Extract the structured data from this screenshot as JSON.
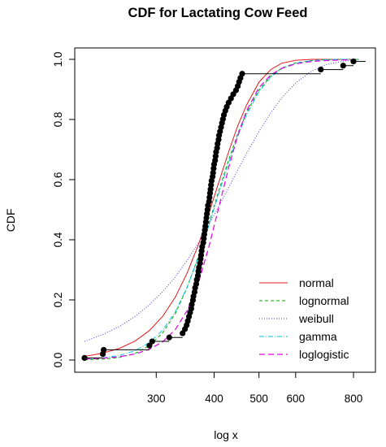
{
  "chart_data": {
    "type": "line",
    "title": "CDF for Lactating Cow Feed",
    "xlabel": "log x",
    "ylabel": "CDF",
    "x_scale": "log",
    "xlim": [
      210,
      850
    ],
    "ylim": [
      0,
      1
    ],
    "x_ticks": [
      300,
      400,
      500,
      600,
      800
    ],
    "y_ticks": [
      0.0,
      0.2,
      0.4,
      0.6,
      0.8,
      1.0
    ],
    "y_tick_labels": [
      "0.0",
      "0.2",
      "0.4",
      "0.6",
      "0.8",
      "1.0"
    ],
    "grid": false,
    "legend_position": "bottom-right",
    "legend_box": false,
    "empirical": {
      "name": "empirical",
      "color": "#000000",
      "points": [
        [
          210,
          0.007
        ],
        [
          230,
          0.02
        ],
        [
          231,
          0.034
        ],
        [
          290,
          0.048
        ],
        [
          294,
          0.062
        ],
        [
          320,
          0.075
        ],
        [
          342,
          0.089
        ],
        [
          346,
          0.103
        ],
        [
          349,
          0.116
        ],
        [
          351,
          0.13
        ],
        [
          353,
          0.144
        ],
        [
          355,
          0.158
        ],
        [
          357,
          0.171
        ],
        [
          358,
          0.185
        ],
        [
          360,
          0.199
        ],
        [
          361,
          0.212
        ],
        [
          363,
          0.226
        ],
        [
          364,
          0.24
        ],
        [
          366,
          0.253
        ],
        [
          367,
          0.267
        ],
        [
          369,
          0.281
        ],
        [
          370,
          0.295
        ],
        [
          371,
          0.308
        ],
        [
          373,
          0.322
        ],
        [
          374,
          0.336
        ],
        [
          375,
          0.349
        ],
        [
          376,
          0.363
        ],
        [
          377,
          0.377
        ],
        [
          379,
          0.39
        ],
        [
          380,
          0.404
        ],
        [
          381,
          0.418
        ],
        [
          382,
          0.432
        ],
        [
          383,
          0.445
        ],
        [
          384,
          0.459
        ],
        [
          385,
          0.473
        ],
        [
          386,
          0.486
        ],
        [
          387,
          0.5
        ],
        [
          388,
          0.514
        ],
        [
          390,
          0.527
        ],
        [
          391,
          0.541
        ],
        [
          392,
          0.555
        ],
        [
          393,
          0.568
        ],
        [
          394,
          0.582
        ],
        [
          395,
          0.596
        ],
        [
          397,
          0.61
        ],
        [
          398,
          0.623
        ],
        [
          399,
          0.637
        ],
        [
          400,
          0.651
        ],
        [
          402,
          0.664
        ],
        [
          403,
          0.678
        ],
        [
          404,
          0.692
        ],
        [
          406,
          0.705
        ],
        [
          407,
          0.719
        ],
        [
          409,
          0.733
        ],
        [
          410,
          0.747
        ],
        [
          412,
          0.76
        ],
        [
          414,
          0.774
        ],
        [
          416,
          0.788
        ],
        [
          418,
          0.801
        ],
        [
          420,
          0.815
        ],
        [
          423,
          0.829
        ],
        [
          426,
          0.842
        ],
        [
          430,
          0.856
        ],
        [
          435,
          0.87
        ],
        [
          440,
          0.884
        ],
        [
          446,
          0.897
        ],
        [
          450,
          0.911
        ],
        [
          453,
          0.925
        ],
        [
          456,
          0.938
        ],
        [
          460,
          0.952
        ],
        [
          680,
          0.966
        ],
        [
          760,
          0.979
        ],
        [
          800,
          0.993
        ]
      ]
    },
    "series": [
      {
        "name": "normal",
        "color": "#e31a1c",
        "dash": "",
        "width": 1,
        "x": [
          210,
          230,
          250,
          270,
          290,
          310,
          330,
          350,
          370,
          390,
          410,
          430,
          450,
          470,
          500,
          530,
          560,
          600,
          650,
          700,
          760,
          820
        ],
        "values": [
          0.012,
          0.023,
          0.039,
          0.063,
          0.098,
          0.146,
          0.21,
          0.29,
          0.384,
          0.489,
          0.594,
          0.693,
          0.779,
          0.848,
          0.924,
          0.966,
          0.987,
          0.997,
          1.0,
          1.0,
          1.0,
          1.0
        ]
      },
      {
        "name": "lognormal",
        "color": "#00b000",
        "dash": "4 3",
        "width": 1,
        "x": [
          210,
          230,
          250,
          270,
          290,
          310,
          330,
          350,
          370,
          390,
          410,
          430,
          450,
          470,
          500,
          530,
          560,
          600,
          650,
          700,
          760,
          820
        ],
        "values": [
          0.001,
          0.003,
          0.009,
          0.022,
          0.048,
          0.091,
          0.155,
          0.242,
          0.345,
          0.456,
          0.566,
          0.666,
          0.753,
          0.823,
          0.898,
          0.944,
          0.971,
          0.988,
          0.996,
          0.999,
          1.0,
          1.0
        ]
      },
      {
        "name": "weibull",
        "color": "#4b3ad8",
        "dash": "1 2",
        "width": 1,
        "x": [
          210,
          230,
          250,
          270,
          290,
          310,
          330,
          350,
          370,
          390,
          410,
          430,
          450,
          470,
          500,
          530,
          560,
          600,
          650,
          700,
          760,
          820
        ],
        "values": [
          0.062,
          0.085,
          0.112,
          0.145,
          0.184,
          0.228,
          0.277,
          0.332,
          0.39,
          0.451,
          0.513,
          0.574,
          0.632,
          0.687,
          0.76,
          0.822,
          0.872,
          0.922,
          0.961,
          0.983,
          0.994,
          0.999
        ]
      },
      {
        "name": "gamma",
        "color": "#00c8dc",
        "dash": "6 2 1 2",
        "width": 1,
        "x": [
          210,
          230,
          250,
          270,
          290,
          310,
          330,
          350,
          370,
          390,
          410,
          430,
          450,
          470,
          500,
          530,
          560,
          600,
          650,
          700,
          760,
          820
        ],
        "values": [
          0.003,
          0.007,
          0.015,
          0.031,
          0.058,
          0.1,
          0.161,
          0.243,
          0.341,
          0.449,
          0.557,
          0.657,
          0.744,
          0.816,
          0.893,
          0.941,
          0.969,
          0.987,
          0.996,
          0.999,
          1.0,
          1.0
        ]
      },
      {
        "name": "loglogistic",
        "color": "#e600e6",
        "dash": "7 4",
        "width": 1.2,
        "x": [
          210,
          230,
          250,
          270,
          290,
          310,
          330,
          350,
          370,
          390,
          410,
          430,
          450,
          470,
          500,
          530,
          560,
          600,
          650,
          700,
          760,
          820
        ],
        "values": [
          0.003,
          0.006,
          0.011,
          0.02,
          0.036,
          0.061,
          0.102,
          0.165,
          0.257,
          0.378,
          0.512,
          0.64,
          0.747,
          0.829,
          0.906,
          0.948,
          0.97,
          0.985,
          0.993,
          0.996,
          0.998,
          0.999
        ]
      }
    ]
  }
}
